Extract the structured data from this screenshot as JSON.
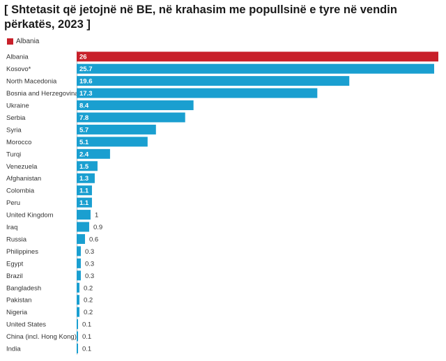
{
  "chart_data": {
    "type": "bar",
    "orientation": "horizontal",
    "title": "[ Shtetasit që jetojnë në BE, në krahasim me popullsinë e tyre në vendin përkatës, 2023 ]",
    "legend": [
      {
        "label": "Albania",
        "color": "#c8202a"
      }
    ],
    "highlight_category": "Albania",
    "colors": {
      "highlight": "#c8202a",
      "default": "#1a9fd0"
    },
    "xlim": [
      0,
      26
    ],
    "categories": [
      "Albania",
      "Kosovo*",
      "North Macedonia",
      "Bosnia and Herzegovina",
      "Ukraine",
      "Serbia",
      "Syria",
      "Morocco",
      "Turqi",
      "Venezuela",
      "Afghanistan",
      "Colombia",
      "Peru",
      "United Kingdom",
      "Iraq",
      "Russia",
      "Philippines",
      "Egypt",
      "Brazil",
      "Bangladesh",
      "Pakistan",
      "Nigeria",
      "United States",
      "China (incl. Hong Kong)",
      "India"
    ],
    "values": [
      26,
      25.7,
      19.6,
      17.3,
      8.4,
      7.8,
      5.7,
      5.1,
      2.4,
      1.5,
      1.3,
      1.1,
      1.1,
      1,
      0.9,
      0.6,
      0.3,
      0.3,
      0.3,
      0.2,
      0.2,
      0.2,
      0.1,
      0.1,
      0.1
    ]
  }
}
